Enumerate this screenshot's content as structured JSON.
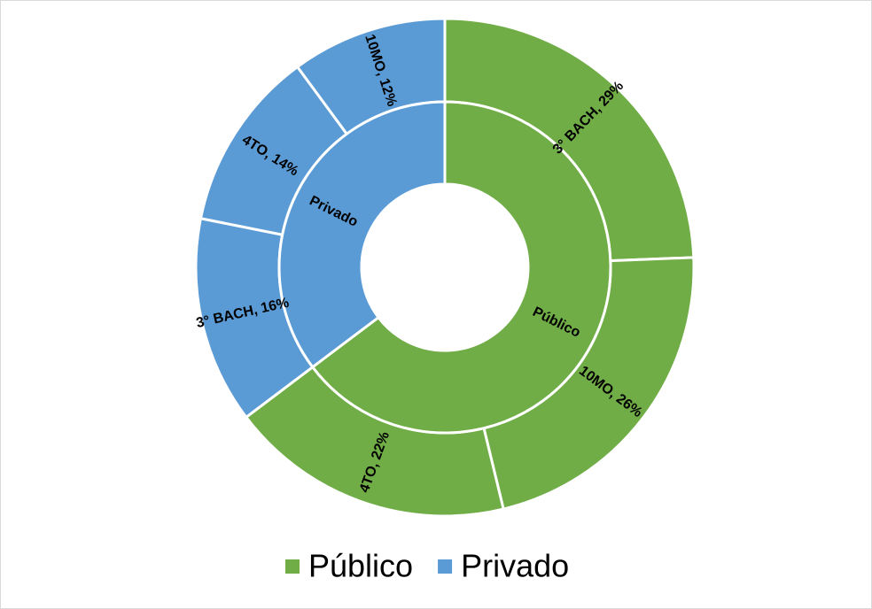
{
  "chart_data": {
    "type": "sunburst",
    "series": [
      {
        "name": "Público",
        "color": "#70ad47",
        "values": [
          29,
          26,
          22
        ],
        "value_labels": [
          "3° BACH, 29%",
          "10MO, 26%",
          "4TO, 22%"
        ]
      },
      {
        "name": "Privado",
        "color": "#5b9bd5",
        "values": [
          16,
          14,
          12
        ],
        "value_labels": [
          "3° BACH, 16%",
          "4TO, 14%",
          "10MO, 12%"
        ]
      }
    ],
    "legend": "bottom"
  }
}
